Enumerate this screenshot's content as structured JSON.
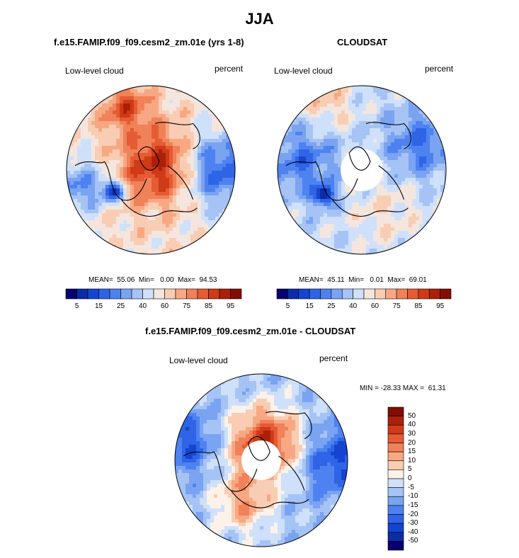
{
  "page_title": "JJA",
  "panels": [
    {
      "title": "f.e15.FAMIP.f09_f09.cesm2_zm.01e (yrs 1-8)",
      "left_label": "Low-level cloud",
      "right_label": "percent",
      "stats": "MEAN=  55.06  Min=   0.00  Max=  94.53"
    },
    {
      "title": "CLOUDSAT",
      "left_label": "Low-level cloud",
      "right_label": "percent",
      "stats": "MEAN=  45.11  Min=   0.01  Max=  69.01"
    },
    {
      "title": "f.e15.FAMIP.f09_f09.cesm2_zm.01e - CLOUDSAT",
      "left_label": "Low-level cloud",
      "right_label": "percent",
      "stats": "MIN = -28.33 MAX =  61.31"
    }
  ],
  "colors": {
    "seq": [
      "#08006e",
      "#0b2ca6",
      "#1445d0",
      "#2f64e6",
      "#4d82f0",
      "#7aa3f2",
      "#a6c3f5",
      "#cfe0fa",
      "#f4e6de",
      "#f8cdb3",
      "#f7a883",
      "#f08158",
      "#e55b33",
      "#cf3a17",
      "#ab2008",
      "#830d02"
    ],
    "div": [
      "#830d02",
      "#ab2008",
      "#cf3a17",
      "#e55b33",
      "#f08158",
      "#f7a883",
      "#f8cdb3",
      "#fdf2ea",
      "#cfe0fa",
      "#a6c3f5",
      "#7aa3f2",
      "#4d82f0",
      "#2f64e6",
      "#1445d0",
      "#0b2ca6",
      "#08006e"
    ]
  },
  "chart_data": [
    {
      "type": "heatmap",
      "projection": "polar stereographic (north pole)",
      "title": "f.e15.FAMIP.f09_f09.cesm2_zm.01e (yrs 1-8)",
      "variable": "Low-level cloud",
      "units": "percent",
      "mean": 55.06,
      "min": 0.0,
      "max": 94.53,
      "colorbar_levels": [
        5,
        10,
        15,
        20,
        25,
        30,
        40,
        50,
        60,
        65,
        75,
        80,
        85,
        90,
        95
      ],
      "colorbar_tick_labels": [
        "5",
        "15",
        "25",
        "40",
        "60",
        "75",
        "85",
        "95"
      ]
    },
    {
      "type": "heatmap",
      "projection": "polar stereographic (north pole)",
      "title": "CLOUDSAT",
      "variable": "Low-level cloud",
      "units": "percent",
      "mean": 45.11,
      "min": 0.01,
      "max": 69.01,
      "colorbar_levels": [
        5,
        10,
        15,
        20,
        25,
        30,
        40,
        50,
        60,
        65,
        75,
        80,
        85,
        90,
        95
      ],
      "colorbar_tick_labels": [
        "5",
        "15",
        "25",
        "40",
        "60",
        "75",
        "85",
        "95"
      ]
    },
    {
      "type": "heatmap",
      "projection": "polar stereographic (north pole)",
      "title": "f.e15.FAMIP.f09_f09.cesm2_zm.01e - CLOUDSAT",
      "variable": "Low-level cloud",
      "units": "percent",
      "min": -28.33,
      "max": 61.31,
      "colorbar_tick_labels": [
        "50",
        "40",
        "30",
        "20",
        "15",
        "10",
        "5",
        "0",
        "-5",
        "-10",
        "-15",
        "-20",
        "-30",
        "-40",
        "-50"
      ]
    }
  ]
}
